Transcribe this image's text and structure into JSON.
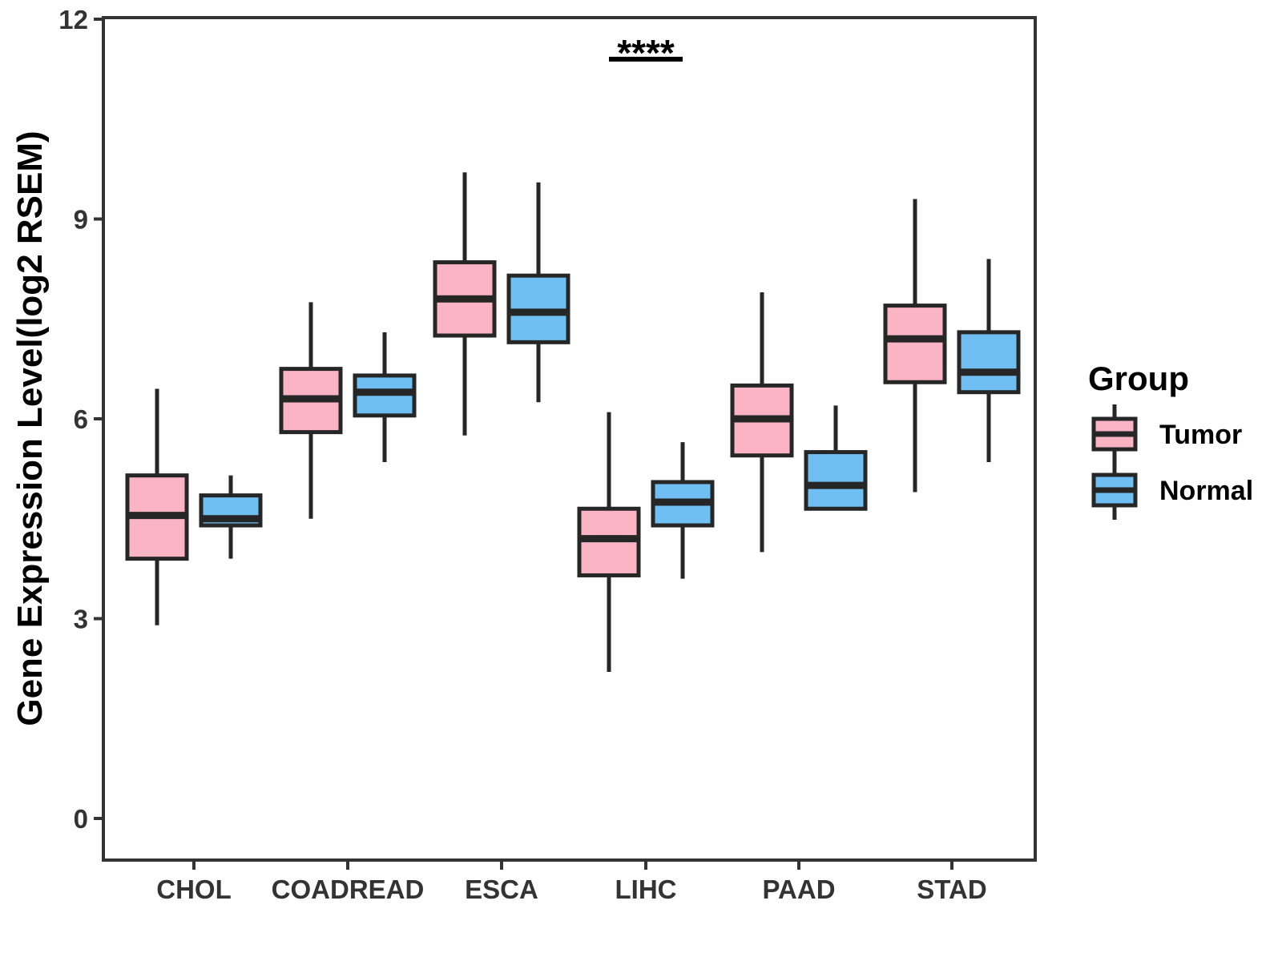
{
  "chart_data": {
    "type": "boxplot",
    "title": "",
    "xlabel": "",
    "ylabel": "Gene Expression Level(log2 RSEM)",
    "ylim": [
      0,
      12
    ],
    "yticks": [
      0,
      3,
      6,
      9,
      12
    ],
    "grid": "off",
    "panel_border": true,
    "categories": [
      "CHOL",
      "COADREAD",
      "ESCA",
      "LIHC",
      "PAAD",
      "STAD"
    ],
    "legend": {
      "title": "Group",
      "position": "right",
      "entries": [
        {
          "label": "Tumor",
          "fill": "#FAB4C4"
        },
        {
          "label": "Normal",
          "fill": "#70BFF2"
        }
      ]
    },
    "significance": {
      "label": "****",
      "category": "LIHC",
      "y": 11.4,
      "underline": true
    },
    "series": [
      {
        "name": "Tumor",
        "fill": "#FAB4C4",
        "boxes": [
          {
            "category": "CHOL",
            "low": 2.9,
            "q1": 3.9,
            "median": 4.55,
            "q3": 5.15,
            "high": 6.45
          },
          {
            "category": "COADREAD",
            "low": 4.5,
            "q1": 5.8,
            "median": 6.3,
            "q3": 6.75,
            "high": 7.75
          },
          {
            "category": "ESCA",
            "low": 5.75,
            "q1": 7.25,
            "median": 7.8,
            "q3": 8.35,
            "high": 9.7
          },
          {
            "category": "LIHC",
            "low": 2.2,
            "q1": 3.65,
            "median": 4.2,
            "q3": 4.65,
            "high": 6.1
          },
          {
            "category": "PAAD",
            "low": 4.0,
            "q1": 5.45,
            "median": 6.0,
            "q3": 6.5,
            "high": 7.9
          },
          {
            "category": "STAD",
            "low": 4.9,
            "q1": 6.55,
            "median": 7.2,
            "q3": 7.7,
            "high": 9.3
          }
        ]
      },
      {
        "name": "Normal",
        "fill": "#70BFF2",
        "boxes": [
          {
            "category": "CHOL",
            "low": 3.9,
            "q1": 4.4,
            "median": 4.5,
            "q3": 4.85,
            "high": 5.15
          },
          {
            "category": "COADREAD",
            "low": 5.35,
            "q1": 6.05,
            "median": 6.4,
            "q3": 6.65,
            "high": 7.3
          },
          {
            "category": "ESCA",
            "low": 6.25,
            "q1": 7.15,
            "median": 7.6,
            "q3": 8.15,
            "high": 9.55
          },
          {
            "category": "LIHC",
            "low": 3.6,
            "q1": 4.4,
            "median": 4.75,
            "q3": 5.05,
            "high": 5.65
          },
          {
            "category": "PAAD",
            "low": 4.65,
            "q1": 4.65,
            "median": 5.0,
            "q3": 5.5,
            "high": 6.2
          },
          {
            "category": "STAD",
            "low": 5.35,
            "q1": 6.4,
            "median": 6.7,
            "q3": 7.3,
            "high": 8.4
          }
        ]
      }
    ],
    "style": {
      "box_border": "#262626",
      "axis_color": "#333333",
      "tick_text_color": "#333333",
      "text_color": "#000000",
      "background": "#FFFFFF"
    }
  }
}
